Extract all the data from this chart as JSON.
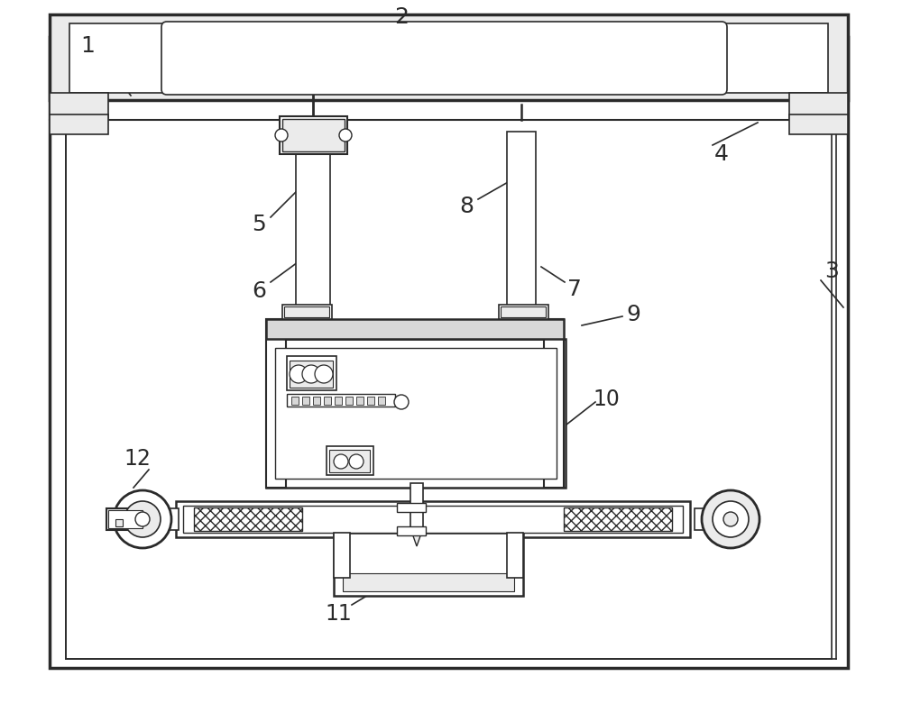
{
  "bg_color": "#ffffff",
  "line_color": "#2a2a2a",
  "gray_fill": "#d8d8d8",
  "light_fill": "#ebebeb",
  "med_gray": "#999999",
  "figsize": [
    10.0,
    8.01
  ],
  "dpi": 100
}
